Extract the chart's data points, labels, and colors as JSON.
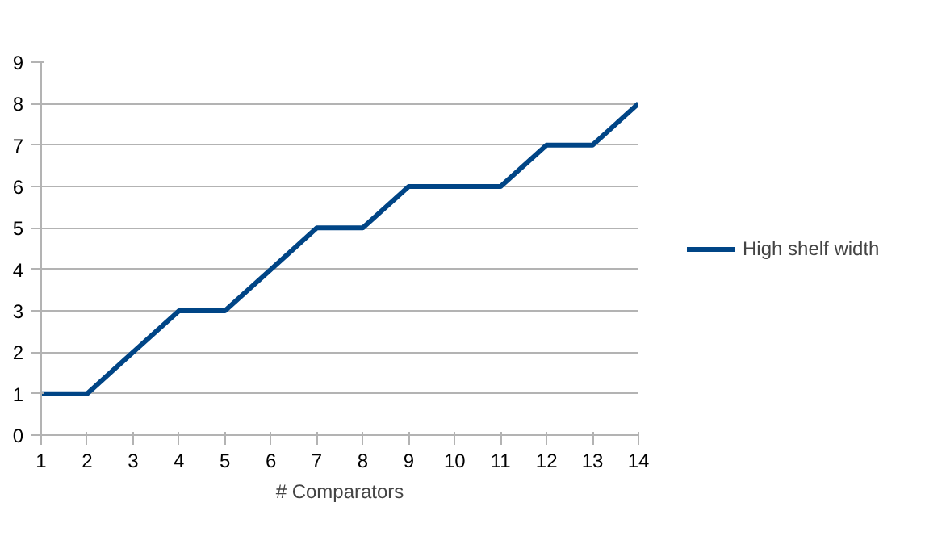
{
  "chart_data": {
    "type": "line",
    "xlabel": "# Comparators",
    "x": [
      1,
      2,
      3,
      4,
      5,
      6,
      7,
      8,
      9,
      10,
      11,
      12,
      13,
      14
    ],
    "series": [
      {
        "name": "High shelf width",
        "color": "#004586",
        "values": [
          1,
          1,
          2,
          3,
          3,
          4,
          5,
          5,
          6,
          6,
          6,
          7,
          7,
          8
        ]
      }
    ],
    "xlim": [
      1,
      14
    ],
    "xticks": [
      1,
      2,
      3,
      4,
      5,
      6,
      7,
      8,
      9,
      10,
      11,
      12,
      13,
      14
    ],
    "ylim": [
      0,
      9
    ],
    "yticks": [
      0,
      1,
      2,
      3,
      4,
      5,
      6,
      7,
      8,
      9
    ],
    "grid": "y",
    "legend": "right",
    "marker": "none",
    "line_style": "solid"
  }
}
